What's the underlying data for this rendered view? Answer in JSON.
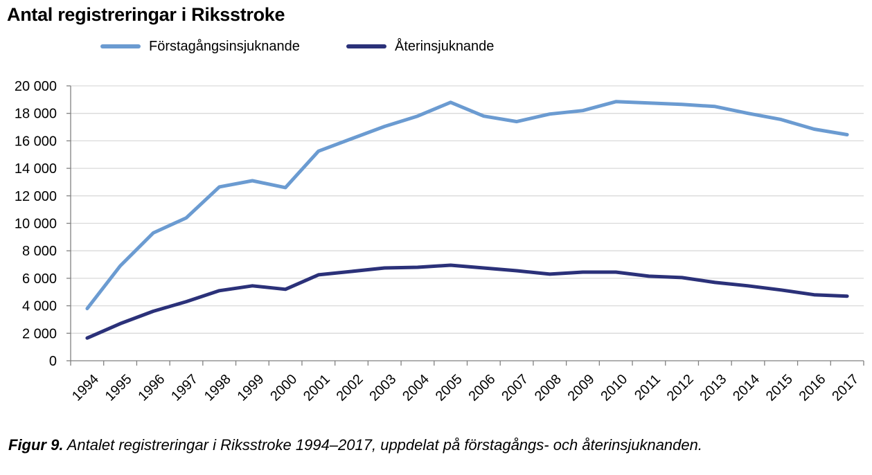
{
  "chart_data": {
    "type": "line",
    "title": "Antal registreringar i Riksstroke",
    "categories": [
      "1994",
      "1995",
      "1996",
      "1997",
      "1998",
      "1999",
      "2000",
      "2001",
      "2002",
      "2003",
      "2004",
      "2005",
      "2006",
      "2007",
      "2008",
      "2009",
      "2010",
      "2011",
      "2012",
      "2013",
      "2014",
      "2015",
      "2016",
      "2017"
    ],
    "series": [
      {
        "name": "Förstagångsinsjuknande",
        "color": "#6b9bd1",
        "values": [
          3800,
          6900,
          9300,
          10400,
          12650,
          13100,
          12600,
          15250,
          16150,
          17050,
          17800,
          18800,
          17800,
          17400,
          17950,
          18200,
          18850,
          18750,
          18650,
          18500,
          18000,
          17550,
          16850,
          16450
        ]
      },
      {
        "name": "Återinsjuknande",
        "color": "#2b3179",
        "values": [
          1650,
          2700,
          3600,
          4300,
          5100,
          5450,
          5200,
          6250,
          6500,
          6750,
          6800,
          6950,
          6750,
          6550,
          6300,
          6450,
          6450,
          6150,
          6050,
          5700,
          5450,
          5150,
          4800,
          4700
        ]
      }
    ],
    "ylim": [
      0,
      20000
    ],
    "yticks": [
      0,
      2000,
      4000,
      6000,
      8000,
      10000,
      12000,
      14000,
      16000,
      18000,
      20000
    ],
    "ytick_labels": [
      "0",
      "2 000",
      "4 000",
      "6 000",
      "8 000",
      "10 000",
      "12 000",
      "14 000",
      "16 000",
      "18 000",
      "20 000"
    ],
    "grid": true,
    "legend_position": "top"
  },
  "caption": {
    "label": "Figur 9.",
    "text": " Antalet registreringar i Riksstroke 1994–2017, uppdelat på förstagångs- och återinsjuknanden."
  }
}
